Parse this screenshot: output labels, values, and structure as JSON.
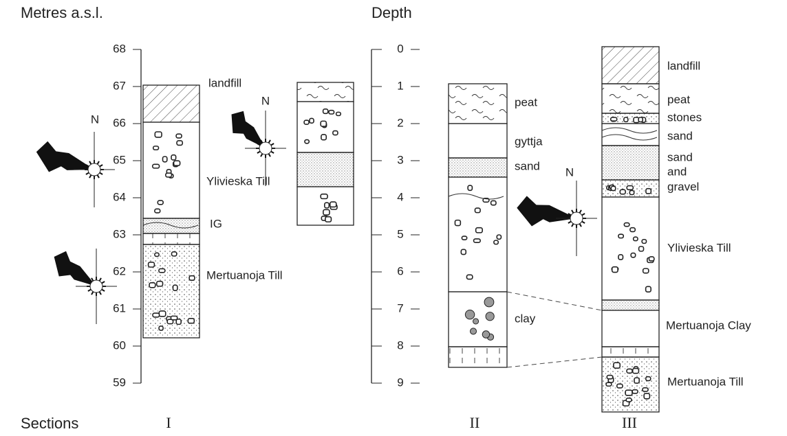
{
  "header": {
    "left_axis_title": "Metres a.s.l.",
    "right_axis_title": "Depth"
  },
  "left_axis": {
    "ticks": [
      68,
      67,
      66,
      65,
      64,
      63,
      62,
      61,
      60,
      59
    ]
  },
  "depth_axis": {
    "ticks": [
      0,
      1,
      2,
      3,
      4,
      5,
      6,
      7,
      8,
      9
    ]
  },
  "footer": {
    "label": "Sections",
    "sections": [
      "I",
      "II",
      "III"
    ]
  },
  "section_1": {
    "layers": [
      "landfill",
      "Ylivieska Till",
      "IG",
      "Mertuanoja Till"
    ],
    "north": "N",
    "inset_north": "N"
  },
  "section_2": {
    "layers": [
      "peat",
      "gyttja",
      "sand",
      "clay"
    ],
    "north": "N"
  },
  "section_3": {
    "layers": [
      "landfill",
      "peat",
      "stones",
      "sand",
      "sand",
      "and",
      "gravel",
      "Ylivieska Till",
      "Mertuanoja Clay",
      "Mertuanoja Till"
    ]
  }
}
